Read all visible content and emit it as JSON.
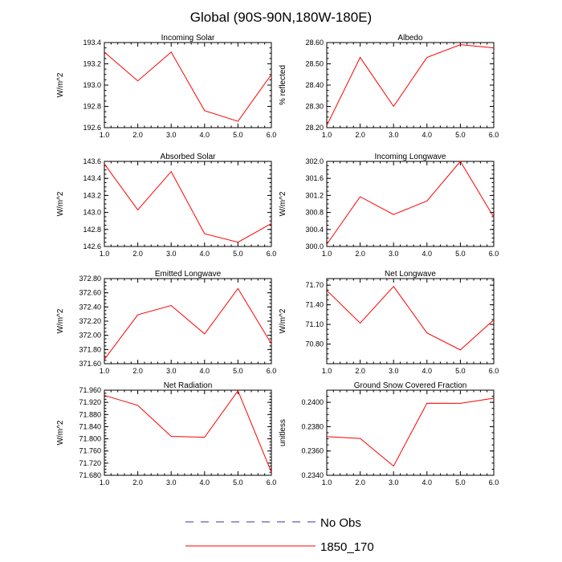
{
  "title": "Global (90S-90N,180W-180E)",
  "colors": {
    "series": "#ff0000",
    "obs": "#3333aa",
    "axis": "#000000"
  },
  "legend": [
    {
      "label": "No Obs",
      "style": "dashed",
      "color": "#3333aa"
    },
    {
      "label": "1850_170",
      "style": "solid",
      "color": "#ff0000"
    }
  ],
  "chart_data": [
    {
      "type": "line",
      "title": "Incoming Solar",
      "ylabel": "W/m^2",
      "x": [
        1,
        2,
        3,
        4,
        5,
        6
      ],
      "xlim": [
        1,
        6
      ],
      "xticklabels": [
        "1.0",
        "2.0",
        "3.0",
        "4.0",
        "5.0",
        "6.0"
      ],
      "ylim": [
        192.6,
        193.4
      ],
      "yticks": [
        192.6,
        192.8,
        193.0,
        193.2,
        193.4
      ],
      "yticklabels": [
        "192.6",
        "192.8",
        "193.0",
        "193.2",
        "193.4"
      ],
      "series": [
        {
          "name": "1850_170",
          "values": [
            193.31,
            193.04,
            193.31,
            192.76,
            192.66,
            193.1
          ]
        }
      ]
    },
    {
      "type": "line",
      "title": "Albedo",
      "ylabel": "% reflected",
      "x": [
        1,
        2,
        3,
        4,
        5,
        6
      ],
      "xlim": [
        1,
        6
      ],
      "xticklabels": [
        "1.0",
        "2.0",
        "3.0",
        "4.0",
        "5.0",
        "6.0"
      ],
      "ylim": [
        28.2,
        28.6
      ],
      "yticks": [
        28.2,
        28.3,
        28.4,
        28.5,
        28.6
      ],
      "yticklabels": [
        "28.20",
        "28.30",
        "28.40",
        "28.50",
        "28.60"
      ],
      "series": [
        {
          "name": "1850_170",
          "values": [
            28.21,
            28.53,
            28.3,
            28.53,
            28.59,
            28.575
          ]
        }
      ]
    },
    {
      "type": "line",
      "title": "Absorbed Solar",
      "ylabel": "W/m^2",
      "x": [
        1,
        2,
        3,
        4,
        5,
        6
      ],
      "xlim": [
        1,
        6
      ],
      "xticklabels": [
        "1.0",
        "2.0",
        "3.0",
        "4.0",
        "5.0",
        "6.0"
      ],
      "ylim": [
        142.6,
        143.6
      ],
      "yticks": [
        142.6,
        142.8,
        143.0,
        143.2,
        143.4,
        143.6
      ],
      "yticklabels": [
        "142.6",
        "142.8",
        "143.0",
        "143.2",
        "143.4",
        "143.6"
      ],
      "series": [
        {
          "name": "1850_170",
          "values": [
            143.57,
            143.03,
            143.48,
            142.75,
            142.65,
            142.87
          ]
        }
      ]
    },
    {
      "type": "line",
      "title": "Incoming Longwave",
      "ylabel": "W/m^2",
      "x": [
        1,
        2,
        3,
        4,
        5,
        6
      ],
      "xlim": [
        1,
        6
      ],
      "xticklabels": [
        "1.0",
        "2.0",
        "3.0",
        "4.0",
        "5.0",
        "6.0"
      ],
      "ylim": [
        300.0,
        302.0
      ],
      "yticks": [
        300.0,
        300.4,
        300.8,
        301.2,
        301.6,
        302.0
      ],
      "yticklabels": [
        "300.0",
        "300.4",
        "300.8",
        "301.2",
        "301.6",
        "302.0"
      ],
      "series": [
        {
          "name": "1850_170",
          "values": [
            300.05,
            301.17,
            300.75,
            301.07,
            302.0,
            300.69
          ]
        }
      ]
    },
    {
      "type": "line",
      "title": "Emitted Longwave",
      "ylabel": "W/m^2",
      "x": [
        1,
        2,
        3,
        4,
        5,
        6
      ],
      "xlim": [
        1,
        6
      ],
      "xticklabels": [
        "1.0",
        "2.0",
        "3.0",
        "4.0",
        "5.0",
        "6.0"
      ],
      "ylim": [
        371.6,
        372.8
      ],
      "yticks": [
        371.6,
        371.8,
        372.0,
        372.2,
        372.4,
        372.6,
        372.8
      ],
      "yticklabels": [
        "371.60",
        "371.80",
        "372.00",
        "372.20",
        "372.40",
        "372.60",
        "372.80"
      ],
      "series": [
        {
          "name": "1850_170",
          "values": [
            371.66,
            372.29,
            372.42,
            372.02,
            372.66,
            371.88
          ]
        }
      ]
    },
    {
      "type": "line",
      "title": "Net Longwave",
      "ylabel": "W/m^2",
      "x": [
        1,
        2,
        3,
        4,
        5,
        6
      ],
      "xlim": [
        1,
        6
      ],
      "xticklabels": [
        "1.0",
        "2.0",
        "3.0",
        "4.0",
        "5.0",
        "6.0"
      ],
      "ylim": [
        70.5,
        71.8
      ],
      "yticks": [
        70.8,
        71.1,
        71.4,
        71.7
      ],
      "yticklabels": [
        "70.80",
        "71.10",
        "71.40",
        "71.70"
      ],
      "series": [
        {
          "name": "1850_170",
          "values": [
            71.62,
            71.12,
            71.68,
            70.97,
            70.71,
            71.17
          ]
        }
      ]
    },
    {
      "type": "line",
      "title": "Net Radiation",
      "ylabel": "W/m^2",
      "x": [
        1,
        2,
        3,
        4,
        5,
        6
      ],
      "xlim": [
        1,
        6
      ],
      "xticklabels": [
        "1.0",
        "2.0",
        "3.0",
        "4.0",
        "5.0",
        "6.0"
      ],
      "ylim": [
        71.68,
        71.96
      ],
      "yticks": [
        71.68,
        71.72,
        71.76,
        71.8,
        71.84,
        71.88,
        71.92,
        71.96
      ],
      "yticklabels": [
        "71.680",
        "71.720",
        "71.760",
        "71.800",
        "71.840",
        "71.880",
        "71.920",
        "71.960"
      ],
      "series": [
        {
          "name": "1850_170",
          "values": [
            71.943,
            71.91,
            71.808,
            71.805,
            71.958,
            71.69
          ]
        }
      ]
    },
    {
      "type": "line",
      "title": "Ground Snow Covered Fraction",
      "ylabel": "unitless",
      "x": [
        1,
        2,
        3,
        4,
        5,
        6
      ],
      "xlim": [
        1,
        6
      ],
      "xticklabels": [
        "1.0",
        "2.0",
        "3.0",
        "4.0",
        "5.0",
        "6.0"
      ],
      "ylim": [
        0.234,
        0.241
      ],
      "yticks": [
        0.234,
        0.236,
        0.238,
        0.24
      ],
      "yticklabels": [
        "0.2340",
        "0.2360",
        "0.2380",
        "0.2400"
      ],
      "series": [
        {
          "name": "1850_170",
          "values": [
            0.23718,
            0.23703,
            0.23476,
            0.23993,
            0.23992,
            0.24034
          ]
        }
      ]
    }
  ]
}
